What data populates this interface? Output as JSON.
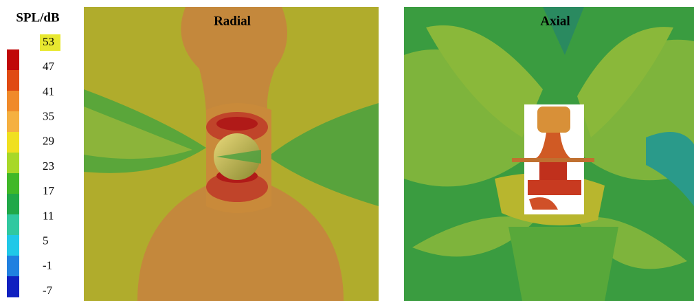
{
  "legend": {
    "title": "SPL/dB",
    "ticks": [
      53,
      47,
      41,
      35,
      29,
      23,
      17,
      11,
      5,
      -1,
      -7
    ]
  },
  "panels": [
    {
      "title": "Radial"
    },
    {
      "title": "Axial"
    }
  ]
}
